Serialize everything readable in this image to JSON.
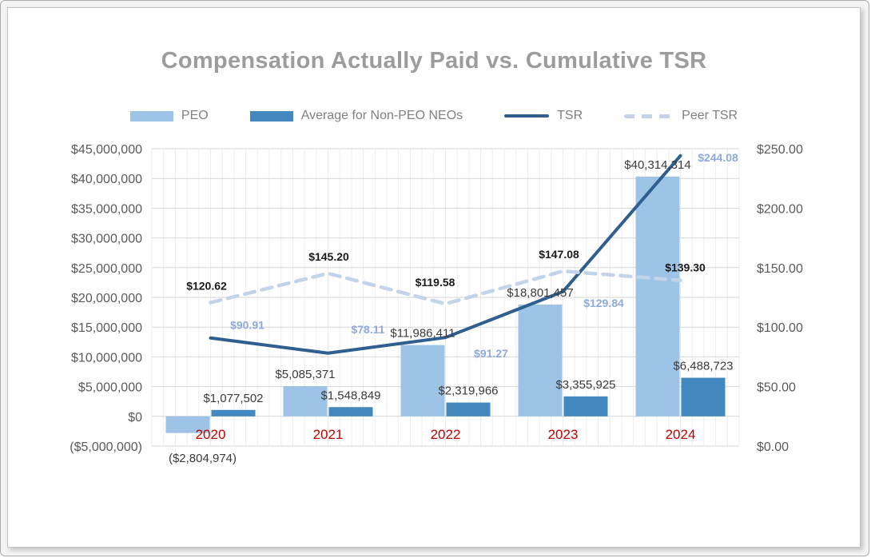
{
  "title": "Compensation Actually Paid vs. Cumulative TSR",
  "legend": [
    {
      "label": "PEO",
      "style": "bar",
      "color": "#9dc3e6"
    },
    {
      "label": "Average for Non-PEO NEOs",
      "style": "bar",
      "color": "#4287bd"
    },
    {
      "label": "TSR",
      "style": "line",
      "color": "#2f5f8f"
    },
    {
      "label": "Peer TSR",
      "style": "dashed-line",
      "color": "#c3d3ea"
    }
  ],
  "chart_data": {
    "type": "combo",
    "title": "Compensation Actually Paid vs. Cumulative TSR",
    "categories": [
      "2020",
      "2021",
      "2022",
      "2023",
      "2024"
    ],
    "category_color": "#c00000",
    "grid": true,
    "series": [
      {
        "name": "PEO",
        "type": "bar",
        "axis": "left",
        "color": "#9dc3e6",
        "values": [
          -2804974,
          5085371,
          11986411,
          18801457,
          40314314
        ],
        "labels": [
          "($2,804,974)",
          "$5,085,371",
          "$11,986,411",
          "$18,801,457",
          "$40,314,314"
        ],
        "label_color": "#3a3a3a"
      },
      {
        "name": "Average for Non-PEO NEOs",
        "type": "bar",
        "axis": "left",
        "color": "#4287bd",
        "values": [
          1077502,
          1548849,
          2319966,
          3355925,
          6488723
        ],
        "labels": [
          "$1,077,502",
          "$1,548,849",
          "$2,319,966",
          "$3,355,925",
          "$6,488,723"
        ],
        "label_color": "#3a3a3a"
      },
      {
        "name": "TSR",
        "type": "line",
        "axis": "right",
        "color": "#2f5f8f",
        "values": [
          90.91,
          78.11,
          91.27,
          129.84,
          244.08
        ],
        "labels": [
          "$90.91",
          "$78.11",
          "$91.27",
          "$129.84",
          "$244.08"
        ],
        "label_color": "#8ea9db"
      },
      {
        "name": "Peer TSR",
        "type": "dashed-line",
        "axis": "right",
        "color": "#c3d3ea",
        "values": [
          120.62,
          145.2,
          119.58,
          147.08,
          139.3
        ],
        "labels": [
          "$120.62",
          "$145.20",
          "$119.58",
          "$147.08",
          "$139.30"
        ],
        "label_color": "#1a1a1a"
      }
    ],
    "left_axis": {
      "min": -5000000,
      "max": 45000000,
      "step": 5000000,
      "tick_labels": [
        "($5,000,000)",
        "$0",
        "$5,000,000",
        "$10,000,000",
        "$15,000,000",
        "$20,000,000",
        "$25,000,000",
        "$30,000,000",
        "$35,000,000",
        "$40,000,000",
        "$45,000,000"
      ]
    },
    "right_axis": {
      "min": 0,
      "max": 250,
      "step": 50,
      "tick_labels": [
        "$0.00",
        "$50.00",
        "$100.00",
        "$150.00",
        "$200.00",
        "$250.00"
      ]
    },
    "legend_position": "top"
  }
}
